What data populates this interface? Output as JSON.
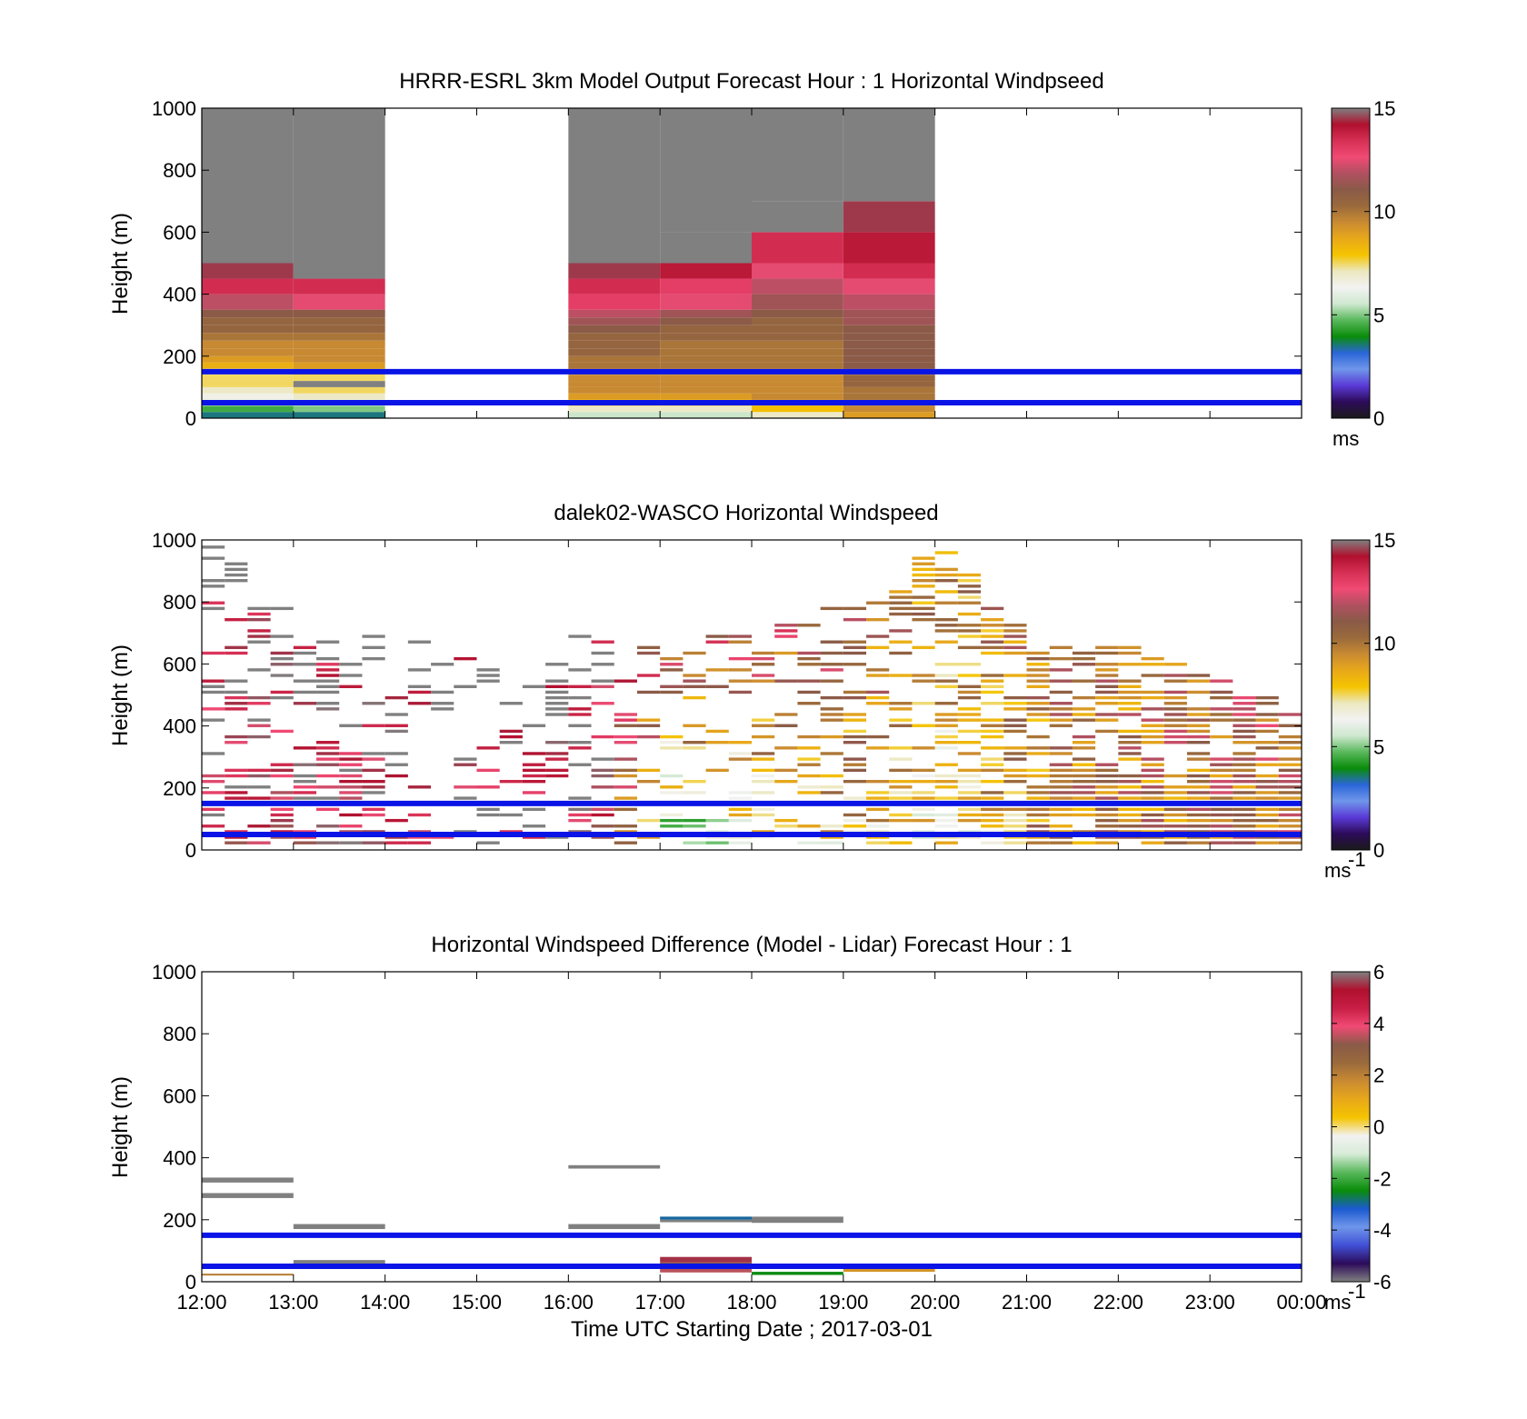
{
  "colors": {
    "speed_scale": [
      "#1a1a1a",
      "#2d0b5a",
      "#5a3ad6",
      "#6f96ea",
      "#2a66d8",
      "#0a8c0a",
      "#59b85c",
      "#cfe8cf",
      "#f2f2f2",
      "#ece8c0",
      "#f5c400",
      "#e8a81a",
      "#c98a32",
      "#9a6a3c",
      "#8a5a48",
      "#b05060",
      "#f04a74",
      "#d63055",
      "#b0102e",
      "#808080"
    ],
    "diff_scale": [
      "#808080",
      "#2d0b5a",
      "#4050d6",
      "#6f96ea",
      "#1a5ad0",
      "#0a8c0a",
      "#59b85c",
      "#d7ebd7",
      "#f2f2f2",
      "#f5c400",
      "#e8a81a",
      "#c98a32",
      "#9a6a3c",
      "#8a5a48",
      "#f04a74",
      "#c81e46",
      "#b0102e",
      "#808080"
    ],
    "guide_lines": "#0a14e6",
    "frame": "#000000",
    "saturated": "#808080"
  },
  "chart_data": [
    {
      "type": "heatmap",
      "title": "HRRR-ESRL 3km Model Output   Forecast Hour : 1 Horizontal Windpseed",
      "ylabel": "Height (m)",
      "xlabel": "",
      "xlim": [
        12,
        24
      ],
      "ylim": [
        0,
        1000
      ],
      "yticks": [
        "0",
        "200",
        "400",
        "600",
        "800",
        "1000"
      ],
      "xticks": [
        "",
        "",
        "",
        "",
        "",
        "",
        "",
        "",
        "",
        "",
        "",
        "",
        ""
      ],
      "guide_heights": [
        50,
        150
      ],
      "colorbar": {
        "min": 0,
        "max": 15,
        "ticks": [
          "0",
          "5",
          "10",
          "15"
        ],
        "unit": "ms"
      },
      "columns": [
        {
          "t0": 12,
          "t1": 13,
          "cells": [
            [
              0,
              20,
              3.5
            ],
            [
              20,
              40,
              4.5
            ],
            [
              40,
              60,
              6
            ],
            [
              60,
              80,
              6.5
            ],
            [
              80,
              100,
              7
            ],
            [
              100,
              120,
              7.5
            ],
            [
              120,
              140,
              7.5
            ],
            [
              140,
              160,
              7.5
            ],
            [
              160,
              180,
              8.5
            ],
            [
              180,
              200,
              9
            ],
            [
              200,
              225,
              9.5
            ],
            [
              225,
              250,
              9.5
            ],
            [
              250,
              275,
              10
            ],
            [
              275,
              300,
              10.5
            ],
            [
              300,
              325,
              10.5
            ],
            [
              325,
              350,
              11
            ],
            [
              350,
              400,
              12
            ],
            [
              400,
              450,
              13.5
            ],
            [
              450,
              500,
              14.5
            ],
            [
              500,
              1000,
              16
            ]
          ]
        },
        {
          "t0": 13,
          "t1": 14,
          "cells": [
            [
              0,
              20,
              3.5
            ],
            [
              20,
              40,
              5
            ],
            [
              40,
              60,
              6
            ],
            [
              60,
              80,
              7
            ],
            [
              80,
              100,
              7.5
            ],
            [
              100,
              120,
              16
            ],
            [
              120,
              140,
              7.5
            ],
            [
              140,
              160,
              8
            ],
            [
              160,
              180,
              9
            ],
            [
              180,
              200,
              9.5
            ],
            [
              200,
              225,
              9.5
            ],
            [
              225,
              250,
              9.5
            ],
            [
              250,
              275,
              10
            ],
            [
              275,
              300,
              10.5
            ],
            [
              300,
              325,
              10.5
            ],
            [
              325,
              350,
              11
            ],
            [
              350,
              400,
              12.5
            ],
            [
              400,
              450,
              13.5
            ],
            [
              450,
              1000,
              16
            ]
          ]
        },
        {
          "t0": 16,
          "t1": 17,
          "cells": [
            [
              0,
              20,
              5.5
            ],
            [
              20,
              40,
              7
            ],
            [
              40,
              60,
              8
            ],
            [
              60,
              80,
              9
            ],
            [
              80,
              100,
              9.5
            ],
            [
              100,
              120,
              9.5
            ],
            [
              120,
              140,
              9.5
            ],
            [
              140,
              160,
              9.5
            ],
            [
              160,
              180,
              10
            ],
            [
              180,
              200,
              10
            ],
            [
              200,
              225,
              10.5
            ],
            [
              225,
              250,
              10.5
            ],
            [
              250,
              275,
              10.5
            ],
            [
              275,
              300,
              11
            ],
            [
              300,
              325,
              11.5
            ],
            [
              325,
              350,
              12
            ],
            [
              350,
              400,
              13
            ],
            [
              400,
              450,
              13.5
            ],
            [
              450,
              500,
              14.5
            ],
            [
              500,
              1000,
              16
            ]
          ]
        },
        {
          "t0": 17,
          "t1": 18,
          "cells": [
            [
              0,
              20,
              5.5
            ],
            [
              20,
              40,
              7
            ],
            [
              40,
              60,
              8
            ],
            [
              60,
              80,
              9
            ],
            [
              80,
              100,
              9.5
            ],
            [
              100,
              120,
              9.5
            ],
            [
              120,
              140,
              9.5
            ],
            [
              140,
              160,
              9.5
            ],
            [
              160,
              180,
              10
            ],
            [
              180,
              200,
              10
            ],
            [
              200,
              225,
              10
            ],
            [
              225,
              250,
              10
            ],
            [
              250,
              275,
              10.5
            ],
            [
              275,
              300,
              10.5
            ],
            [
              300,
              325,
              11
            ],
            [
              325,
              350,
              11.5
            ],
            [
              350,
              400,
              12.5
            ],
            [
              400,
              450,
              13
            ],
            [
              450,
              500,
              14
            ],
            [
              500,
              600,
              15
            ],
            [
              600,
              1000,
              16
            ]
          ]
        },
        {
          "t0": 18,
          "t1": 19,
          "cells": [
            [
              0,
              20,
              7
            ],
            [
              20,
              40,
              8
            ],
            [
              40,
              60,
              9
            ],
            [
              60,
              80,
              9.5
            ],
            [
              80,
              100,
              9.5
            ],
            [
              100,
              120,
              9.5
            ],
            [
              120,
              140,
              9.5
            ],
            [
              140,
              160,
              9.5
            ],
            [
              160,
              180,
              10
            ],
            [
              180,
              200,
              10
            ],
            [
              200,
              225,
              10
            ],
            [
              225,
              250,
              10
            ],
            [
              250,
              275,
              10.5
            ],
            [
              275,
              300,
              10.5
            ],
            [
              300,
              325,
              10.5
            ],
            [
              325,
              350,
              11
            ],
            [
              350,
              400,
              11.5
            ],
            [
              400,
              450,
              12
            ],
            [
              450,
              500,
              12.5
            ],
            [
              500,
              600,
              13.5
            ],
            [
              600,
              700,
              15
            ],
            [
              700,
              1000,
              16
            ]
          ]
        },
        {
          "t0": 19,
          "t1": 20,
          "cells": [
            [
              0,
              20,
              9
            ],
            [
              20,
              40,
              9.5
            ],
            [
              40,
              60,
              10
            ],
            [
              60,
              80,
              10
            ],
            [
              80,
              100,
              10
            ],
            [
              100,
              120,
              10.5
            ],
            [
              120,
              140,
              10.5
            ],
            [
              140,
              160,
              10.5
            ],
            [
              160,
              180,
              11
            ],
            [
              180,
              200,
              11
            ],
            [
              200,
              225,
              11
            ],
            [
              225,
              250,
              11
            ],
            [
              250,
              275,
              11
            ],
            [
              275,
              300,
              11
            ],
            [
              300,
              325,
              11.5
            ],
            [
              325,
              350,
              11.5
            ],
            [
              350,
              400,
              12
            ],
            [
              400,
              450,
              12.5
            ],
            [
              450,
              500,
              13.5
            ],
            [
              500,
              600,
              14
            ],
            [
              600,
              700,
              14.5
            ],
            [
              700,
              1000,
              16
            ]
          ]
        }
      ]
    },
    {
      "type": "heatmap",
      "title": "dalek02-WASCO  Horizontal Windspeed",
      "ylabel": "Height (m)",
      "xlabel": "",
      "xlim": [
        12,
        24
      ],
      "ylim": [
        0,
        1000
      ],
      "yticks": [
        "0",
        "200",
        "400",
        "600",
        "800",
        "1000"
      ],
      "xticks": [
        "",
        "",
        "",
        "",
        "",
        "",
        "",
        "",
        "",
        "",
        "",
        "",
        ""
      ],
      "guide_heights": [
        50,
        150
      ],
      "colorbar": {
        "min": 0,
        "max": 15,
        "ticks": [
          "0",
          "5",
          "10",
          "15"
        ],
        "unit": "ms",
        "unit_exponent": "-1"
      },
      "sample_interval_hours": 0.25,
      "gate_height_m": 18,
      "max_height_by_hour": [
        [
          12,
          1000
        ],
        [
          13,
          700
        ],
        [
          14,
          700
        ],
        [
          15,
          600
        ],
        [
          16,
          700
        ],
        [
          17,
          700
        ],
        [
          18,
          700
        ],
        [
          19,
          800
        ],
        [
          20,
          1000
        ],
        [
          21,
          650
        ],
        [
          22,
          650
        ],
        [
          23,
          550
        ],
        [
          23.8,
          450
        ]
      ],
      "fill_by_hour": [
        [
          12,
          0.4
        ],
        [
          14,
          0.35
        ],
        [
          16,
          0.3
        ],
        [
          17,
          0.35
        ],
        [
          19,
          0.45
        ],
        [
          21,
          0.7
        ],
        [
          23,
          0.8
        ],
        [
          23.8,
          0.8
        ]
      ],
      "mean_speed_profile": [
        {
          "t": 12,
          "low": 13,
          "high": 15
        },
        {
          "t": 16,
          "low": 14,
          "high": 16
        },
        {
          "t": 17,
          "low": 5,
          "high": 12
        },
        {
          "t": 19,
          "low": 8,
          "high": 11
        },
        {
          "t": 20,
          "low": 7,
          "high": 9
        },
        {
          "t": 21,
          "low": 9.5,
          "high": 10
        },
        {
          "t": 23.8,
          "low": 10.5,
          "high": 11
        }
      ]
    },
    {
      "type": "heatmap",
      "title": "Horizontal Windspeed Difference (Model - Lidar) Forecast Hour : 1",
      "ylabel": "Height (m)",
      "xlabel": "Time UTC  Starting Date ; 2017-03-01",
      "xlim": [
        12,
        24
      ],
      "ylim": [
        0,
        1000
      ],
      "yticks": [
        "0",
        "200",
        "400",
        "600",
        "800",
        "1000"
      ],
      "xticks": [
        "12:00",
        "13:00",
        "14:00",
        "15:00",
        "16:00",
        "17:00",
        "18:00",
        "19:00",
        "20:00",
        "21:00",
        "22:00",
        "23:00",
        "00:00"
      ],
      "guide_heights": [
        50,
        150
      ],
      "colorbar": {
        "min": -6,
        "max": 6,
        "ticks": [
          "-6",
          "-4",
          "-2",
          "0",
          "2",
          "4",
          "6"
        ],
        "unit": "ms",
        "unit_exponent": "-1"
      },
      "cells": [
        {
          "t0": 12,
          "t1": 13,
          "h0": 320,
          "h1": 336,
          "v": 7
        },
        {
          "t0": 12,
          "t1": 13,
          "h0": 270,
          "h1": 286,
          "v": 7
        },
        {
          "t0": 12,
          "t1": 13,
          "h0": 20,
          "h1": 26,
          "v": 2
        },
        {
          "t0": 13,
          "t1": 14,
          "h0": 170,
          "h1": 186,
          "v": 7
        },
        {
          "t0": 13,
          "t1": 14,
          "h0": 55,
          "h1": 70,
          "v": 7
        },
        {
          "t0": 16,
          "t1": 17,
          "h0": 365,
          "h1": 376,
          "v": 7
        },
        {
          "t0": 16,
          "t1": 17,
          "h0": 170,
          "h1": 186,
          "v": 7
        },
        {
          "t0": 17,
          "t1": 18,
          "h0": 200,
          "h1": 210,
          "v": -3
        },
        {
          "t0": 17,
          "t1": 18,
          "h0": 192,
          "h1": 200,
          "v": -6
        },
        {
          "t0": 17,
          "t1": 18,
          "h0": 62,
          "h1": 80,
          "v": 5.5
        },
        {
          "t0": 17,
          "t1": 18,
          "h0": 45,
          "h1": 62,
          "v": 3
        },
        {
          "t0": 17,
          "t1": 18,
          "h0": 30,
          "h1": 45,
          "v": 3.5
        },
        {
          "t0": 18,
          "t1": 19,
          "h0": 190,
          "h1": 210,
          "v": 7
        },
        {
          "t0": 18,
          "t1": 19,
          "h0": 22,
          "h1": 32,
          "v": -2.5
        },
        {
          "t0": 19,
          "t1": 20,
          "h0": 32,
          "h1": 42,
          "v": 1.5
        }
      ]
    }
  ]
}
